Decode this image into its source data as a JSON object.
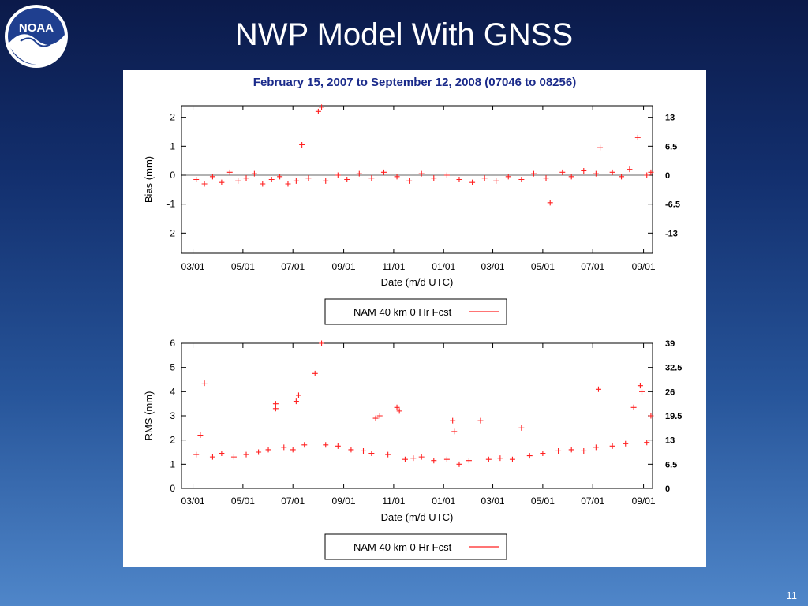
{
  "slide": {
    "title": "NWP Model With GNSS",
    "page_number": "11",
    "logo_text": "NOAA"
  },
  "panel": {
    "title": "February 15, 2007 to September 12, 2008 (07046 to 08256)"
  },
  "colors": {
    "series": "#ff2020",
    "panel_title": "#1a2a8a"
  },
  "chart_data": [
    {
      "type": "scatter",
      "ylabel": "Bias (mm)",
      "xlabel": "Date (m/d UTC)",
      "x_ticks": [
        "03/01",
        "05/01",
        "07/01",
        "09/01",
        "11/01",
        "01/01",
        "03/01",
        "05/01",
        "07/01",
        "09/01"
      ],
      "xlim": [
        "2007-02-15",
        "2008-09-12"
      ],
      "ylim": [
        -2.7,
        2.4
      ],
      "y_ticks": [
        2,
        1,
        0,
        -1,
        -2
      ],
      "right_labels": [
        "13",
        "6.5",
        "0",
        "-6.5",
        "-13"
      ],
      "zero_line": true,
      "legend": {
        "label": "NAM 40 km 0 Hr Fcst",
        "position": "bottom"
      },
      "series": [
        {
          "name": "NAM 40 km 0 Hr Fcst",
          "marker": "+",
          "points": [
            [
              "2007-03-05",
              -0.15
            ],
            [
              "2007-03-15",
              -0.3
            ],
            [
              "2007-03-25",
              -0.05
            ],
            [
              "2007-04-05",
              -0.25
            ],
            [
              "2007-04-15",
              0.1
            ],
            [
              "2007-04-25",
              -0.2
            ],
            [
              "2007-05-05",
              -0.1
            ],
            [
              "2007-05-15",
              0.05
            ],
            [
              "2007-05-25",
              -0.3
            ],
            [
              "2007-06-05",
              -0.15
            ],
            [
              "2007-06-15",
              -0.05
            ],
            [
              "2007-06-25",
              -0.3
            ],
            [
              "2007-07-05",
              -0.2
            ],
            [
              "2007-07-12",
              1.05
            ],
            [
              "2007-07-20",
              -0.1
            ],
            [
              "2007-08-01",
              2.2
            ],
            [
              "2007-08-05",
              2.35
            ],
            [
              "2007-08-10",
              -0.2
            ],
            [
              "2007-08-25",
              0.0
            ],
            [
              "2007-09-05",
              -0.15
            ],
            [
              "2007-09-20",
              0.05
            ],
            [
              "2007-10-05",
              -0.1
            ],
            [
              "2007-10-20",
              0.1
            ],
            [
              "2007-11-05",
              -0.05
            ],
            [
              "2007-11-20",
              -0.2
            ],
            [
              "2007-12-05",
              0.05
            ],
            [
              "2007-12-20",
              -0.1
            ],
            [
              "2008-01-05",
              0.0
            ],
            [
              "2008-01-20",
              -0.15
            ],
            [
              "2008-02-05",
              -0.25
            ],
            [
              "2008-02-20",
              -0.1
            ],
            [
              "2008-03-05",
              -0.2
            ],
            [
              "2008-03-20",
              -0.05
            ],
            [
              "2008-04-05",
              -0.15
            ],
            [
              "2008-04-20",
              0.05
            ],
            [
              "2008-05-05",
              -0.1
            ],
            [
              "2008-05-10",
              -0.95
            ],
            [
              "2008-05-25",
              0.1
            ],
            [
              "2008-06-05",
              -0.05
            ],
            [
              "2008-06-20",
              0.15
            ],
            [
              "2008-07-05",
              0.05
            ],
            [
              "2008-07-10",
              0.95
            ],
            [
              "2008-07-25",
              0.1
            ],
            [
              "2008-08-05",
              -0.05
            ],
            [
              "2008-08-15",
              0.2
            ],
            [
              "2008-08-25",
              1.3
            ],
            [
              "2008-09-05",
              0.0
            ],
            [
              "2008-09-10",
              0.1
            ]
          ]
        }
      ]
    },
    {
      "type": "scatter",
      "ylabel": "RMS (mm)",
      "xlabel": "Date (m/d UTC)",
      "x_ticks": [
        "03/01",
        "05/01",
        "07/01",
        "09/01",
        "11/01",
        "01/01",
        "03/01",
        "05/01",
        "07/01",
        "09/01"
      ],
      "xlim": [
        "2007-02-15",
        "2008-09-12"
      ],
      "ylim": [
        0,
        6
      ],
      "y_ticks": [
        6,
        5,
        4,
        3,
        2,
        1,
        0
      ],
      "right_labels": [
        "39",
        "32.5",
        "26",
        "19.5",
        "13",
        "6.5",
        "0"
      ],
      "legend": {
        "label": "NAM 40 km 0 Hr Fcst",
        "position": "bottom"
      },
      "series": [
        {
          "name": "NAM 40 km 0 Hr Fcst",
          "marker": "+",
          "points": [
            [
              "2007-03-05",
              1.4
            ],
            [
              "2007-03-10",
              2.2
            ],
            [
              "2007-03-15",
              4.35
            ],
            [
              "2007-03-25",
              1.3
            ],
            [
              "2007-04-05",
              1.45
            ],
            [
              "2007-04-20",
              1.3
            ],
            [
              "2007-05-05",
              1.4
            ],
            [
              "2007-05-20",
              1.5
            ],
            [
              "2007-06-01",
              1.6
            ],
            [
              "2007-06-10",
              3.3
            ],
            [
              "2007-06-10",
              3.5
            ],
            [
              "2007-06-20",
              1.7
            ],
            [
              "2007-07-01",
              1.6
            ],
            [
              "2007-07-05",
              3.6
            ],
            [
              "2007-07-08",
              3.85
            ],
            [
              "2007-07-15",
              1.8
            ],
            [
              "2007-07-28",
              4.75
            ],
            [
              "2007-08-05",
              6.0
            ],
            [
              "2007-08-10",
              1.8
            ],
            [
              "2007-08-25",
              1.75
            ],
            [
              "2007-09-10",
              1.6
            ],
            [
              "2007-09-25",
              1.55
            ],
            [
              "2007-10-05",
              1.45
            ],
            [
              "2007-10-10",
              2.9
            ],
            [
              "2007-10-15",
              3.0
            ],
            [
              "2007-10-25",
              1.4
            ],
            [
              "2007-11-05",
              3.35
            ],
            [
              "2007-11-08",
              3.2
            ],
            [
              "2007-11-15",
              1.2
            ],
            [
              "2007-11-25",
              1.25
            ],
            [
              "2007-12-05",
              1.3
            ],
            [
              "2007-12-20",
              1.15
            ],
            [
              "2008-01-05",
              1.2
            ],
            [
              "2008-01-12",
              2.8
            ],
            [
              "2008-01-14",
              2.35
            ],
            [
              "2008-01-20",
              1.0
            ],
            [
              "2008-02-01",
              1.15
            ],
            [
              "2008-02-15",
              2.8
            ],
            [
              "2008-02-25",
              1.2
            ],
            [
              "2008-03-10",
              1.25
            ],
            [
              "2008-03-25",
              1.2
            ],
            [
              "2008-04-05",
              2.5
            ],
            [
              "2008-04-15",
              1.35
            ],
            [
              "2008-05-01",
              1.45
            ],
            [
              "2008-05-20",
              1.55
            ],
            [
              "2008-06-05",
              1.6
            ],
            [
              "2008-06-20",
              1.55
            ],
            [
              "2008-07-05",
              1.7
            ],
            [
              "2008-07-08",
              4.1
            ],
            [
              "2008-07-25",
              1.75
            ],
            [
              "2008-08-10",
              1.85
            ],
            [
              "2008-08-20",
              3.35
            ],
            [
              "2008-08-28",
              4.25
            ],
            [
              "2008-08-30",
              4.0
            ],
            [
              "2008-09-05",
              1.9
            ],
            [
              "2008-09-10",
              3.0
            ]
          ]
        }
      ]
    }
  ]
}
